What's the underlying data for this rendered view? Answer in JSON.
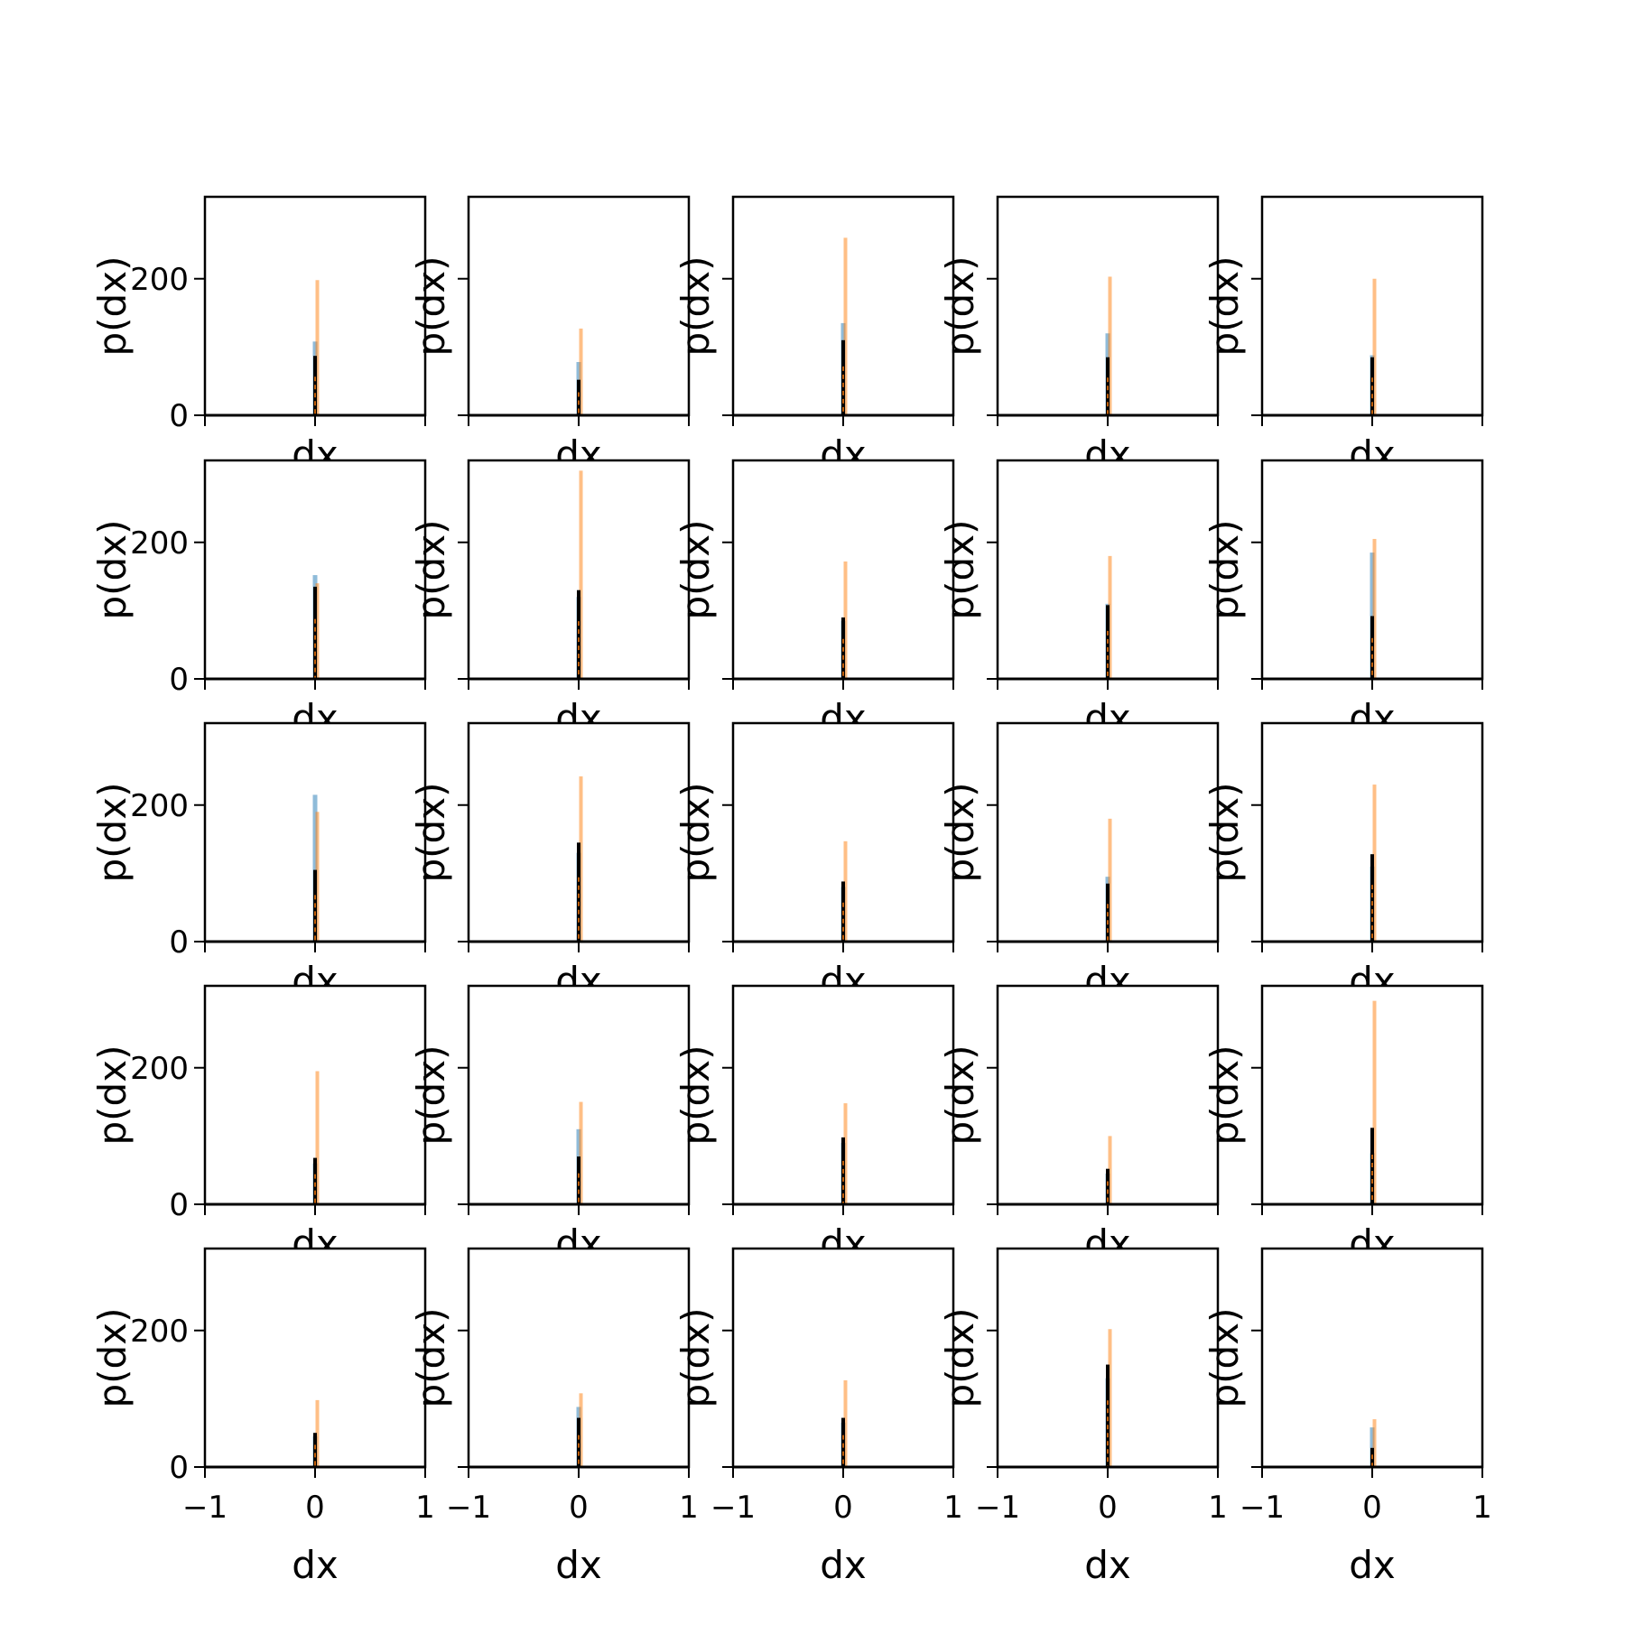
{
  "chart_data": {
    "type": "histogram-grid",
    "rows": 5,
    "cols": 5,
    "xlabel": "dx",
    "ylabel": "p(dx)",
    "xlim": [
      -1,
      1
    ],
    "ylim": [
      0,
      320
    ],
    "xticks": [
      -1,
      0,
      1
    ],
    "xtick_labels": [
      "−1",
      "0",
      "1"
    ],
    "yticks": [
      0,
      200
    ],
    "ytick_labels": [
      "0",
      "200"
    ],
    "grid": false,
    "colors": {
      "blue": "#1f77b4",
      "orange": "#ff7f0e",
      "black": "#000000"
    },
    "panels": [
      {
        "row": 0,
        "col": 0,
        "blue": 108,
        "orange": 198,
        "black": 87
      },
      {
        "row": 0,
        "col": 1,
        "blue": 78,
        "orange": 127,
        "black": 52
      },
      {
        "row": 0,
        "col": 2,
        "blue": 135,
        "orange": 260,
        "black": 110
      },
      {
        "row": 0,
        "col": 3,
        "blue": 120,
        "orange": 203,
        "black": 85
      },
      {
        "row": 0,
        "col": 4,
        "blue": 88,
        "orange": 200,
        "black": 85
      },
      {
        "row": 1,
        "col": 0,
        "blue": 152,
        "orange": 140,
        "black": 135
      },
      {
        "row": 1,
        "col": 1,
        "blue": 120,
        "orange": 305,
        "black": 130
      },
      {
        "row": 1,
        "col": 2,
        "blue": 85,
        "orange": 172,
        "black": 90
      },
      {
        "row": 1,
        "col": 3,
        "blue": 110,
        "orange": 180,
        "black": 108
      },
      {
        "row": 1,
        "col": 4,
        "blue": 185,
        "orange": 205,
        "black": 92
      },
      {
        "row": 2,
        "col": 0,
        "blue": 215,
        "orange": 190,
        "black": 105
      },
      {
        "row": 2,
        "col": 1,
        "blue": 130,
        "orange": 242,
        "black": 145
      },
      {
        "row": 2,
        "col": 2,
        "blue": 80,
        "orange": 147,
        "black": 88
      },
      {
        "row": 2,
        "col": 3,
        "blue": 95,
        "orange": 180,
        "black": 85
      },
      {
        "row": 2,
        "col": 4,
        "blue": 110,
        "orange": 230,
        "black": 128
      },
      {
        "row": 3,
        "col": 0,
        "blue": 60,
        "orange": 195,
        "black": 68
      },
      {
        "row": 3,
        "col": 1,
        "blue": 110,
        "orange": 150,
        "black": 70
      },
      {
        "row": 3,
        "col": 2,
        "blue": 90,
        "orange": 148,
        "black": 98
      },
      {
        "row": 3,
        "col": 3,
        "blue": 45,
        "orange": 100,
        "black": 52
      },
      {
        "row": 3,
        "col": 4,
        "blue": 75,
        "orange": 298,
        "black": 112
      },
      {
        "row": 4,
        "col": 0,
        "blue": 45,
        "orange": 98,
        "black": 50
      },
      {
        "row": 4,
        "col": 1,
        "blue": 88,
        "orange": 108,
        "black": 72
      },
      {
        "row": 4,
        "col": 2,
        "blue": 65,
        "orange": 127,
        "black": 72
      },
      {
        "row": 4,
        "col": 3,
        "blue": 130,
        "orange": 202,
        "black": 150
      },
      {
        "row": 4,
        "col": 4,
        "blue": 58,
        "orange": 70,
        "black": 28
      }
    ]
  }
}
